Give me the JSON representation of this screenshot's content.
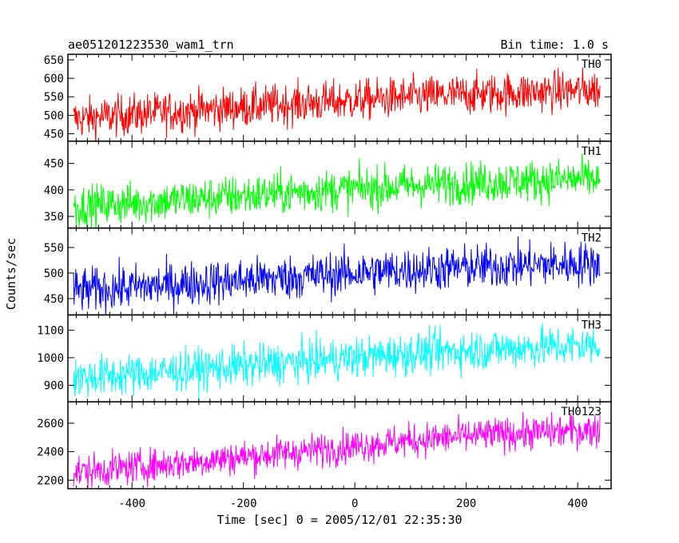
{
  "chart_data": {
    "type": "line",
    "title": "ae051201223530_wam1_trn",
    "subtitle": "Bin time: 1.0 s",
    "xlabel": "Time [sec] 0 = 2005/12/01 22:35:30",
    "ylabel": "Counts/sec",
    "xlim": [
      -515,
      460
    ],
    "x_ticks": [
      -400,
      -200,
      0,
      200,
      400
    ],
    "panels": [
      {
        "name": "TH0",
        "color": "#ff0000",
        "ylim": [
          430,
          665
        ],
        "y_ticks": [
          450,
          500,
          550,
          600,
          650
        ],
        "trend": {
          "x": [
            -505,
            -400,
            -300,
            -200,
            -100,
            0,
            100,
            200,
            300,
            400,
            440
          ],
          "y": [
            490,
            502,
            512,
            522,
            532,
            540,
            549,
            556,
            562,
            567,
            570
          ]
        },
        "noise": 28
      },
      {
        "name": "TH1",
        "color": "#00ff00",
        "ylim": [
          328,
          492
        ],
        "y_ticks": [
          350,
          400,
          450
        ],
        "trend": {
          "x": [
            -505,
            -400,
            -300,
            -200,
            -100,
            0,
            100,
            200,
            300,
            400,
            440
          ],
          "y": [
            368,
            375,
            382,
            389,
            396,
            402,
            408,
            413,
            417,
            420,
            421
          ]
        },
        "noise": 20
      },
      {
        "name": "TH2",
        "color": "#0000ff",
        "ylim": [
          418,
          588
        ],
        "y_ticks": [
          450,
          500,
          550
        ],
        "trend": {
          "x": [
            -505,
            -400,
            -300,
            -200,
            -100,
            0,
            100,
            200,
            300,
            400,
            440
          ],
          "y": [
            465,
            472,
            479,
            486,
            493,
            500,
            506,
            511,
            515,
            518,
            519
          ]
        },
        "noise": 22
      },
      {
        "name": "TH3",
        "color": "#00ffff",
        "ylim": [
          840,
          1155
        ],
        "y_ticks": [
          900,
          1000,
          1100
        ],
        "trend": {
          "x": [
            -505,
            -400,
            -300,
            -200,
            -100,
            0,
            100,
            200,
            300,
            400,
            440
          ],
          "y": [
            925,
            940,
            955,
            970,
            985,
            1000,
            1015,
            1027,
            1036,
            1043,
            1046
          ]
        },
        "noise": 38
      },
      {
        "name": "TH0123",
        "color": "#ff00ff",
        "ylim": [
          2140,
          2750
        ],
        "y_ticks": [
          2200,
          2400,
          2600
        ],
        "trend": {
          "x": [
            -505,
            -400,
            -300,
            -200,
            -100,
            0,
            100,
            200,
            300,
            400,
            440
          ],
          "y": [
            2255,
            2290,
            2325,
            2365,
            2400,
            2440,
            2478,
            2508,
            2530,
            2548,
            2555
          ]
        },
        "noise": 60
      }
    ],
    "grid": false,
    "legend": "none"
  }
}
